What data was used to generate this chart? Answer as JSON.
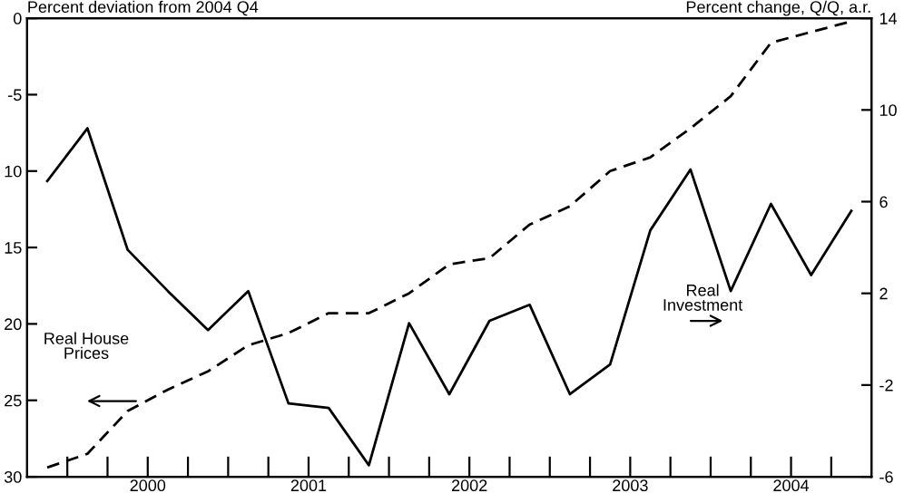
{
  "chart_data": {
    "type": "line",
    "ylabel": "Percent deviation from 2004 Q4",
    "y2label": "Percent change, Q/Q, a.r.",
    "x": [
      1999.875,
      2000.125,
      2000.375,
      2000.625,
      2000.875,
      2001.125,
      2001.375,
      2001.625,
      2001.875,
      2002.125,
      2002.375,
      2002.625,
      2002.875,
      2003.125,
      2003.375,
      2003.625,
      2003.875,
      2004.125,
      2004.375,
      2004.625,
      2004.875
    ],
    "series": [
      {
        "color": "#000000",
        "line_style": "dashed",
        "values": [
          -29.4,
          -28.5,
          -25.7,
          -24.3,
          -23.1,
          -21.4,
          -20.6,
          -19.3,
          -19.3,
          -18.0,
          -16.1,
          -15.7,
          -13.5,
          -12.3,
          -10.0,
          -9.1,
          -7.2,
          -5.1,
          -1.6,
          -0.9,
          -0.2
        ]
      },
      {
        "color": "#000000",
        "line_style": "solid",
        "axis": "y2",
        "values": [
          6.9,
          9.2,
          3.9,
          2.1,
          0.4,
          2.1,
          -2.8,
          -3.0,
          -5.5,
          0.7,
          -2.4,
          0.8,
          1.5,
          -2.4,
          -1.1,
          4.75,
          7.4,
          2.1,
          5.9,
          2.8,
          5.6
        ]
      }
    ],
    "annotations": [
      "Real House\nPrices",
      "Real\nInvestment"
    ],
    "xlim": [
      1999.75,
      2005
    ],
    "xticks": [
      {
        "value": 2000,
        "label": null
      },
      {
        "value": 2000.25,
        "label": null
      },
      {
        "value": 2000.5,
        "label": "2000"
      },
      {
        "value": 2000.75,
        "label": null
      },
      {
        "value": 2001,
        "label": null
      },
      {
        "value": 2001.25,
        "label": null
      },
      {
        "value": 2001.5,
        "label": "2001"
      },
      {
        "value": 2001.75,
        "label": null
      },
      {
        "value": 2002,
        "label": null
      },
      {
        "value": 2002.25,
        "label": null
      },
      {
        "value": 2002.5,
        "label": "2002"
      },
      {
        "value": 2002.75,
        "label": null
      },
      {
        "value": 2003,
        "label": null
      },
      {
        "value": 2003.25,
        "label": null
      },
      {
        "value": 2003.5,
        "label": "2003"
      },
      {
        "value": 2003.75,
        "label": null
      },
      {
        "value": 2004,
        "label": null
      },
      {
        "value": 2004.25,
        "label": null
      },
      {
        "value": 2004.5,
        "label": "2004"
      },
      {
        "value": 2004.75,
        "label": null
      }
    ],
    "ylim": [
      -30,
      0
    ],
    "yticks": [
      {
        "value": 0,
        "label": "0"
      },
      {
        "value": -5,
        "label": "-5"
      },
      {
        "value": -10,
        "label": "10"
      },
      {
        "value": -15,
        "label": "15"
      },
      {
        "value": -20,
        "label": "20"
      },
      {
        "value": -25,
        "label": "25"
      },
      {
        "value": -30,
        "label": "30"
      }
    ],
    "y2lim": [
      -6,
      14
    ],
    "y2ticks": [
      -6,
      -2,
      2,
      6,
      10,
      14
    ],
    "grid": false,
    "legend": false
  }
}
